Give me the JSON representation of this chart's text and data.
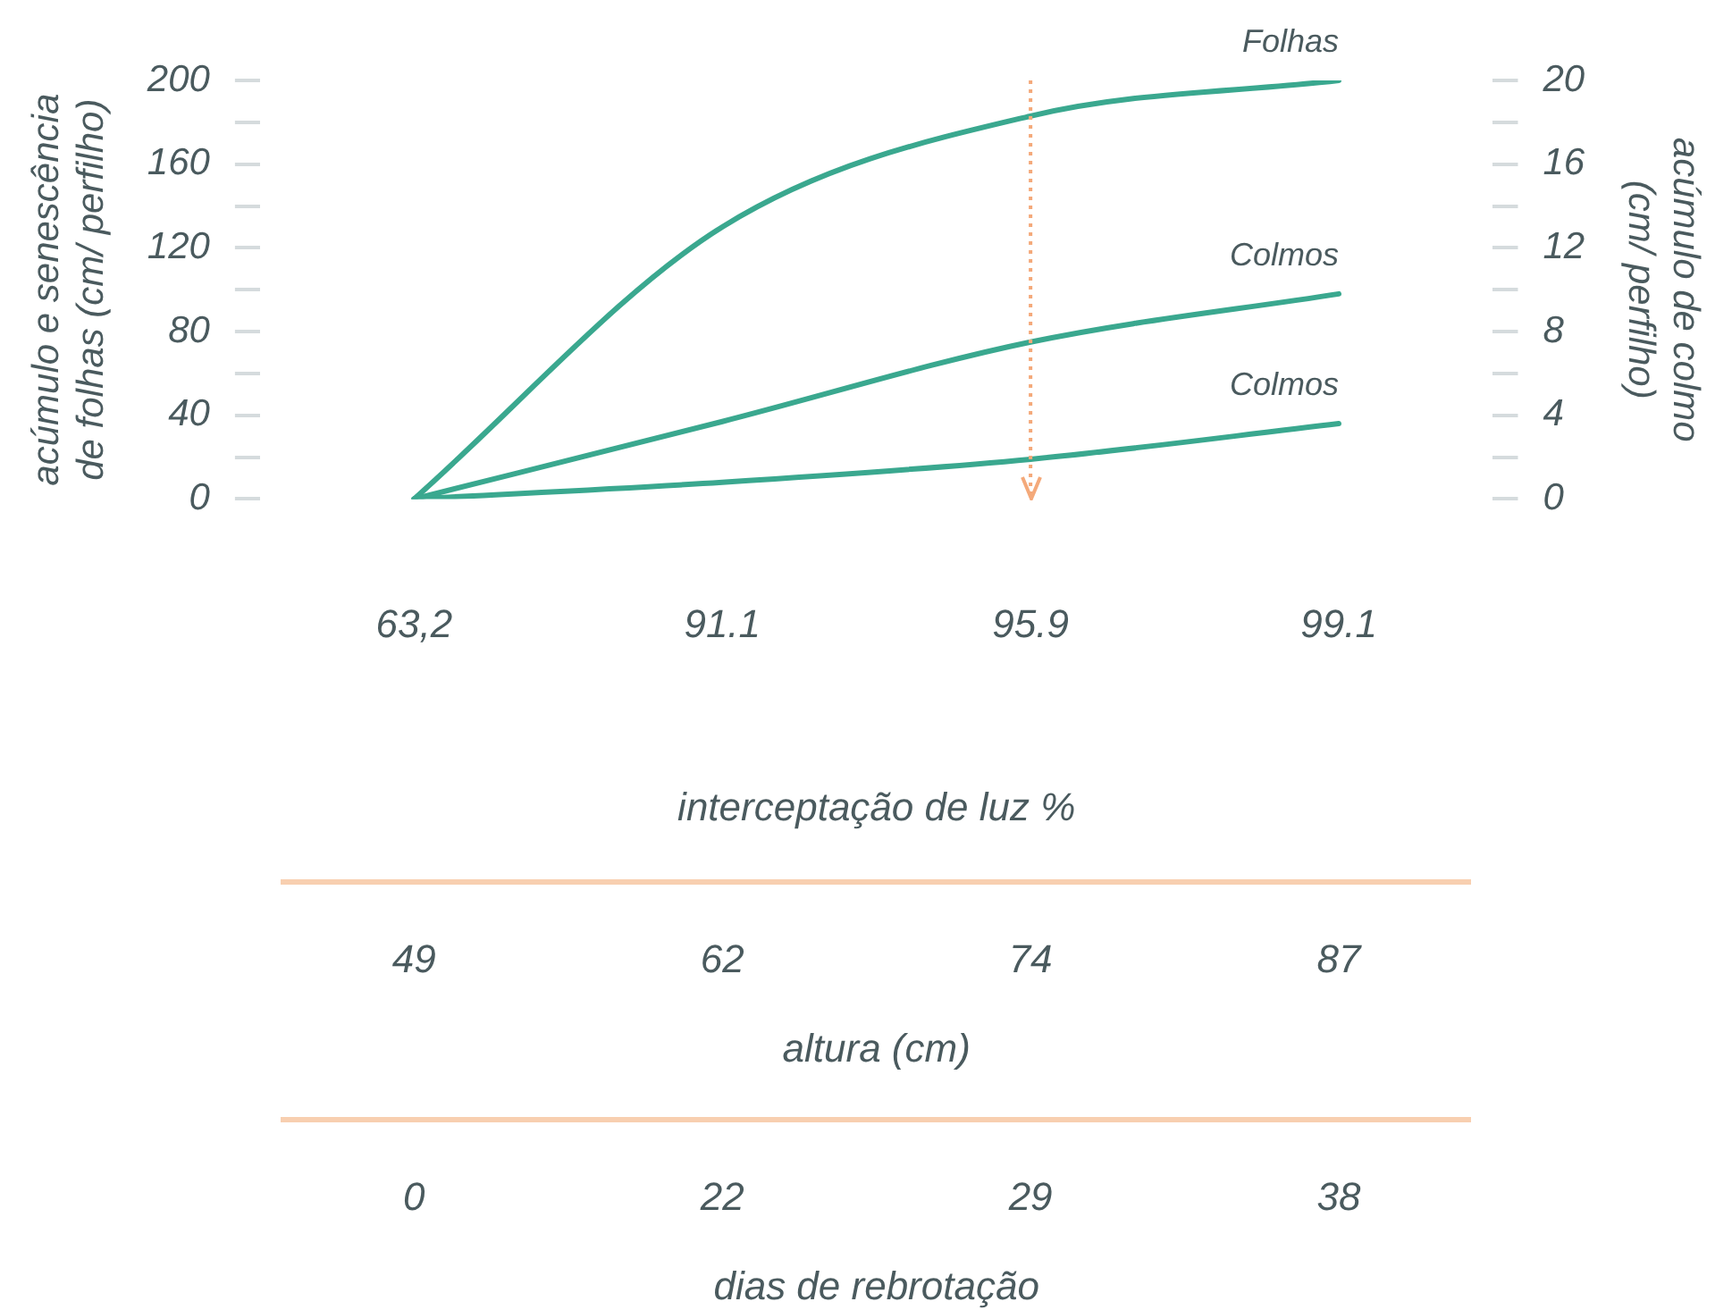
{
  "chart_data": {
    "type": "line",
    "categories": [
      "63,2",
      "91.1",
      "95.9",
      "99.1"
    ],
    "xlabel": "interceptação de luz %",
    "ylabel": "acúmulo e senescência de folhas (cm/ perfilho)",
    "y2label": "acúmulo de colmo (cm/ perfilho)",
    "series": [
      {
        "name": "Folhas",
        "color": "#3aa88f",
        "values": [
          0,
          130,
          183,
          200
        ]
      },
      {
        "name": "Colmos",
        "color": "#3aa88f",
        "axis": "y2",
        "values": [
          0,
          3.7,
          7.5,
          9.8
        ]
      },
      {
        "name": "Colmos",
        "color": "#3aa88f",
        "axis": "y2",
        "values": [
          0,
          0.8,
          1.9,
          3.6
        ]
      }
    ],
    "ylim": [
      0,
      200
    ],
    "yticks": [
      0,
      {
        "value": 20,
        "label": null
      },
      40,
      {
        "value": 60,
        "label": null
      },
      80,
      {
        "value": 100,
        "label": null
      },
      120,
      {
        "value": 140,
        "label": null
      },
      160,
      {
        "value": 180,
        "label": null
      },
      200
    ],
    "y2lim": [
      0,
      20
    ],
    "y2ticks": [
      0,
      {
        "value": 2,
        "label": null
      },
      4,
      {
        "value": 6,
        "label": null
      },
      8,
      {
        "value": 10,
        "label": null
      },
      12,
      {
        "value": 14,
        "label": null
      },
      16,
      {
        "value": 18,
        "label": null
      },
      20
    ],
    "ref_lines": [
      {
        "axis": "x",
        "value": "95.9",
        "color": "#f4a97a",
        "line_style": "dotted"
      }
    ],
    "annotations": [
      "49",
      "62",
      "74",
      "87",
      "altura (cm)",
      "0",
      "22",
      "29",
      "38",
      "dias de rebrotação"
    ],
    "grid": false,
    "legend": false,
    "marker": "none",
    "line_style": "solid"
  }
}
